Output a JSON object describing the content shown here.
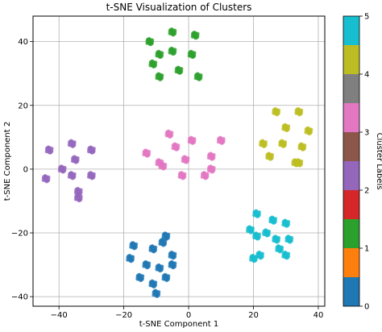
{
  "chart_data": {
    "type": "scatter",
    "title": "t-SNE Visualization of Clusters",
    "xlabel": "t-SNE Component 1",
    "ylabel": "t-SNE Component 2",
    "xlim": [
      -48,
      42
    ],
    "ylim": [
      -43,
      48
    ],
    "xticks": [
      -40,
      -20,
      0,
      20,
      40
    ],
    "yticks": [
      -40,
      -20,
      0,
      20,
      40
    ],
    "grid": true,
    "colorbar": {
      "label": "Cluster Labels",
      "range": [
        0,
        5
      ],
      "ticks": [
        0,
        1,
        2,
        3,
        4,
        5
      ],
      "colors": [
        "#1f77b4",
        "#ff7f0e",
        "#2ca02c",
        "#d62728",
        "#9467bd",
        "#8c564b",
        "#e377c2",
        "#7f7f7f",
        "#bcbd22",
        "#17becf"
      ]
    },
    "series": [
      {
        "label": 0,
        "color": "#1f77b4",
        "points": [
          [
            -7,
            -21
          ],
          [
            -8,
            -23
          ],
          [
            -17,
            -24
          ],
          [
            -11,
            -25
          ],
          [
            -18,
            -28
          ],
          [
            -13,
            -30
          ],
          [
            -5,
            -30
          ],
          [
            -9,
            -31
          ],
          [
            -15,
            -34
          ],
          [
            -7,
            -34
          ],
          [
            -11,
            -36
          ],
          [
            -10,
            -39
          ],
          [
            -5,
            -27
          ]
        ]
      },
      {
        "label": 4,
        "color": "#17becf",
        "points": [
          [
            21,
            -14
          ],
          [
            26,
            -16
          ],
          [
            30,
            -17
          ],
          [
            19,
            -19
          ],
          [
            21,
            -21
          ],
          [
            24,
            -20
          ],
          [
            27,
            -22
          ],
          [
            31,
            -22
          ],
          [
            28,
            -25
          ],
          [
            22,
            -27
          ],
          [
            20,
            -28
          ],
          [
            30,
            -27
          ]
        ]
      },
      {
        "label": 2,
        "color": "#2ca02c",
        "points": [
          [
            -12,
            40
          ],
          [
            -5,
            43
          ],
          [
            2,
            42
          ],
          [
            -9,
            36
          ],
          [
            -5,
            37
          ],
          [
            1,
            36
          ],
          [
            -11,
            33
          ],
          [
            -3,
            31
          ],
          [
            3,
            29
          ],
          [
            -9,
            29
          ]
        ]
      },
      {
        "label": 2.5,
        "color": "#9467bd",
        "points": [
          [
            -43,
            6
          ],
          [
            -36,
            8
          ],
          [
            -30,
            6
          ],
          [
            -35,
            3
          ],
          [
            -39,
            0
          ],
          [
            -44,
            -3
          ],
          [
            -36,
            -2
          ],
          [
            -30,
            -2
          ],
          [
            -34,
            -7
          ],
          [
            -34,
            -9
          ]
        ]
      },
      {
        "label": 3,
        "color": "#e377c2",
        "points": [
          [
            -6,
            11
          ],
          [
            10,
            9
          ],
          [
            1,
            9
          ],
          [
            -4,
            7
          ],
          [
            -13,
            5
          ],
          [
            7,
            4
          ],
          [
            -9,
            2
          ],
          [
            -1,
            3
          ],
          [
            7,
            0
          ],
          [
            -2,
            -2
          ],
          [
            5,
            -2
          ],
          [
            -8,
            1
          ]
        ]
      },
      {
        "label": 4,
        "color": "#bcbd22",
        "points": [
          [
            27,
            18
          ],
          [
            34,
            18
          ],
          [
            30,
            13
          ],
          [
            37,
            12
          ],
          [
            23,
            8
          ],
          [
            29,
            8
          ],
          [
            35,
            7
          ],
          [
            25,
            4
          ],
          [
            33,
            2
          ],
          [
            34,
            2
          ]
        ]
      }
    ]
  }
}
